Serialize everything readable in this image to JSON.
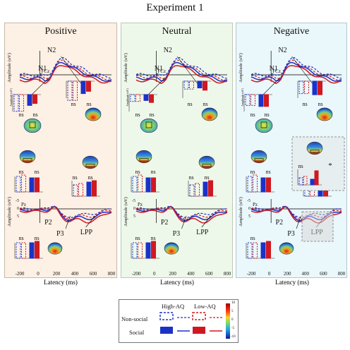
{
  "figure_title": "Experiment 1",
  "panels": [
    {
      "title": "Positive",
      "erp_top": {
        "channel": "FCz",
        "peaks": [
          "N1",
          "N2"
        ]
      },
      "erp_bottom": {
        "channel": "Pz",
        "peaks": [
          "P2",
          "P3",
          "LPP"
        ]
      },
      "sig": [
        "ns",
        "ns",
        "ns",
        "ns",
        "ns",
        "ns",
        "ns",
        "ns",
        "ns",
        "ns"
      ]
    },
    {
      "title": "Neutral",
      "erp_top": {
        "channel": "FCz",
        "peaks": [
          "N1",
          "N2"
        ]
      },
      "erp_bottom": {
        "channel": "Pz",
        "peaks": [
          "P2",
          "P3",
          "LPP"
        ]
      },
      "sig": [
        "ns",
        "ns",
        "ns",
        "ns",
        "ns",
        "ns",
        "ns",
        "ns",
        "ns",
        "ns"
      ]
    },
    {
      "title": "Negative",
      "erp_top": {
        "channel": "FCz",
        "peaks": [
          "N1",
          "N2"
        ]
      },
      "erp_bottom": {
        "channel": "Pz",
        "peaks": [
          "P2",
          "P3",
          "LPP"
        ]
      },
      "sig": [
        "ns",
        "ns",
        "ns",
        "ns",
        "ns",
        "ns",
        "ns",
        "ns",
        "ns",
        "*"
      ]
    }
  ],
  "axes": {
    "ylabel": "Amplitude (uV)",
    "ylabel_short": "Amplitude (uV)",
    "xlabel": "Latency (ms)",
    "xticks": [
      "-200",
      "0",
      "200",
      "400",
      "600",
      "800"
    ],
    "yticks": [
      "-5",
      "0",
      "5"
    ]
  },
  "legend": {
    "col1": "High-AQ",
    "col2": "Low-AQ",
    "row1": "Non-social",
    "row2": "Social",
    "colorbar_max": "10",
    "colorbar_min": "-10",
    "colorbar_ticks": [
      "10",
      "5",
      "0",
      "-5",
      "-10"
    ]
  },
  "colors": {
    "high_aq": "#1a32c8",
    "low_aq": "#d01820"
  }
}
